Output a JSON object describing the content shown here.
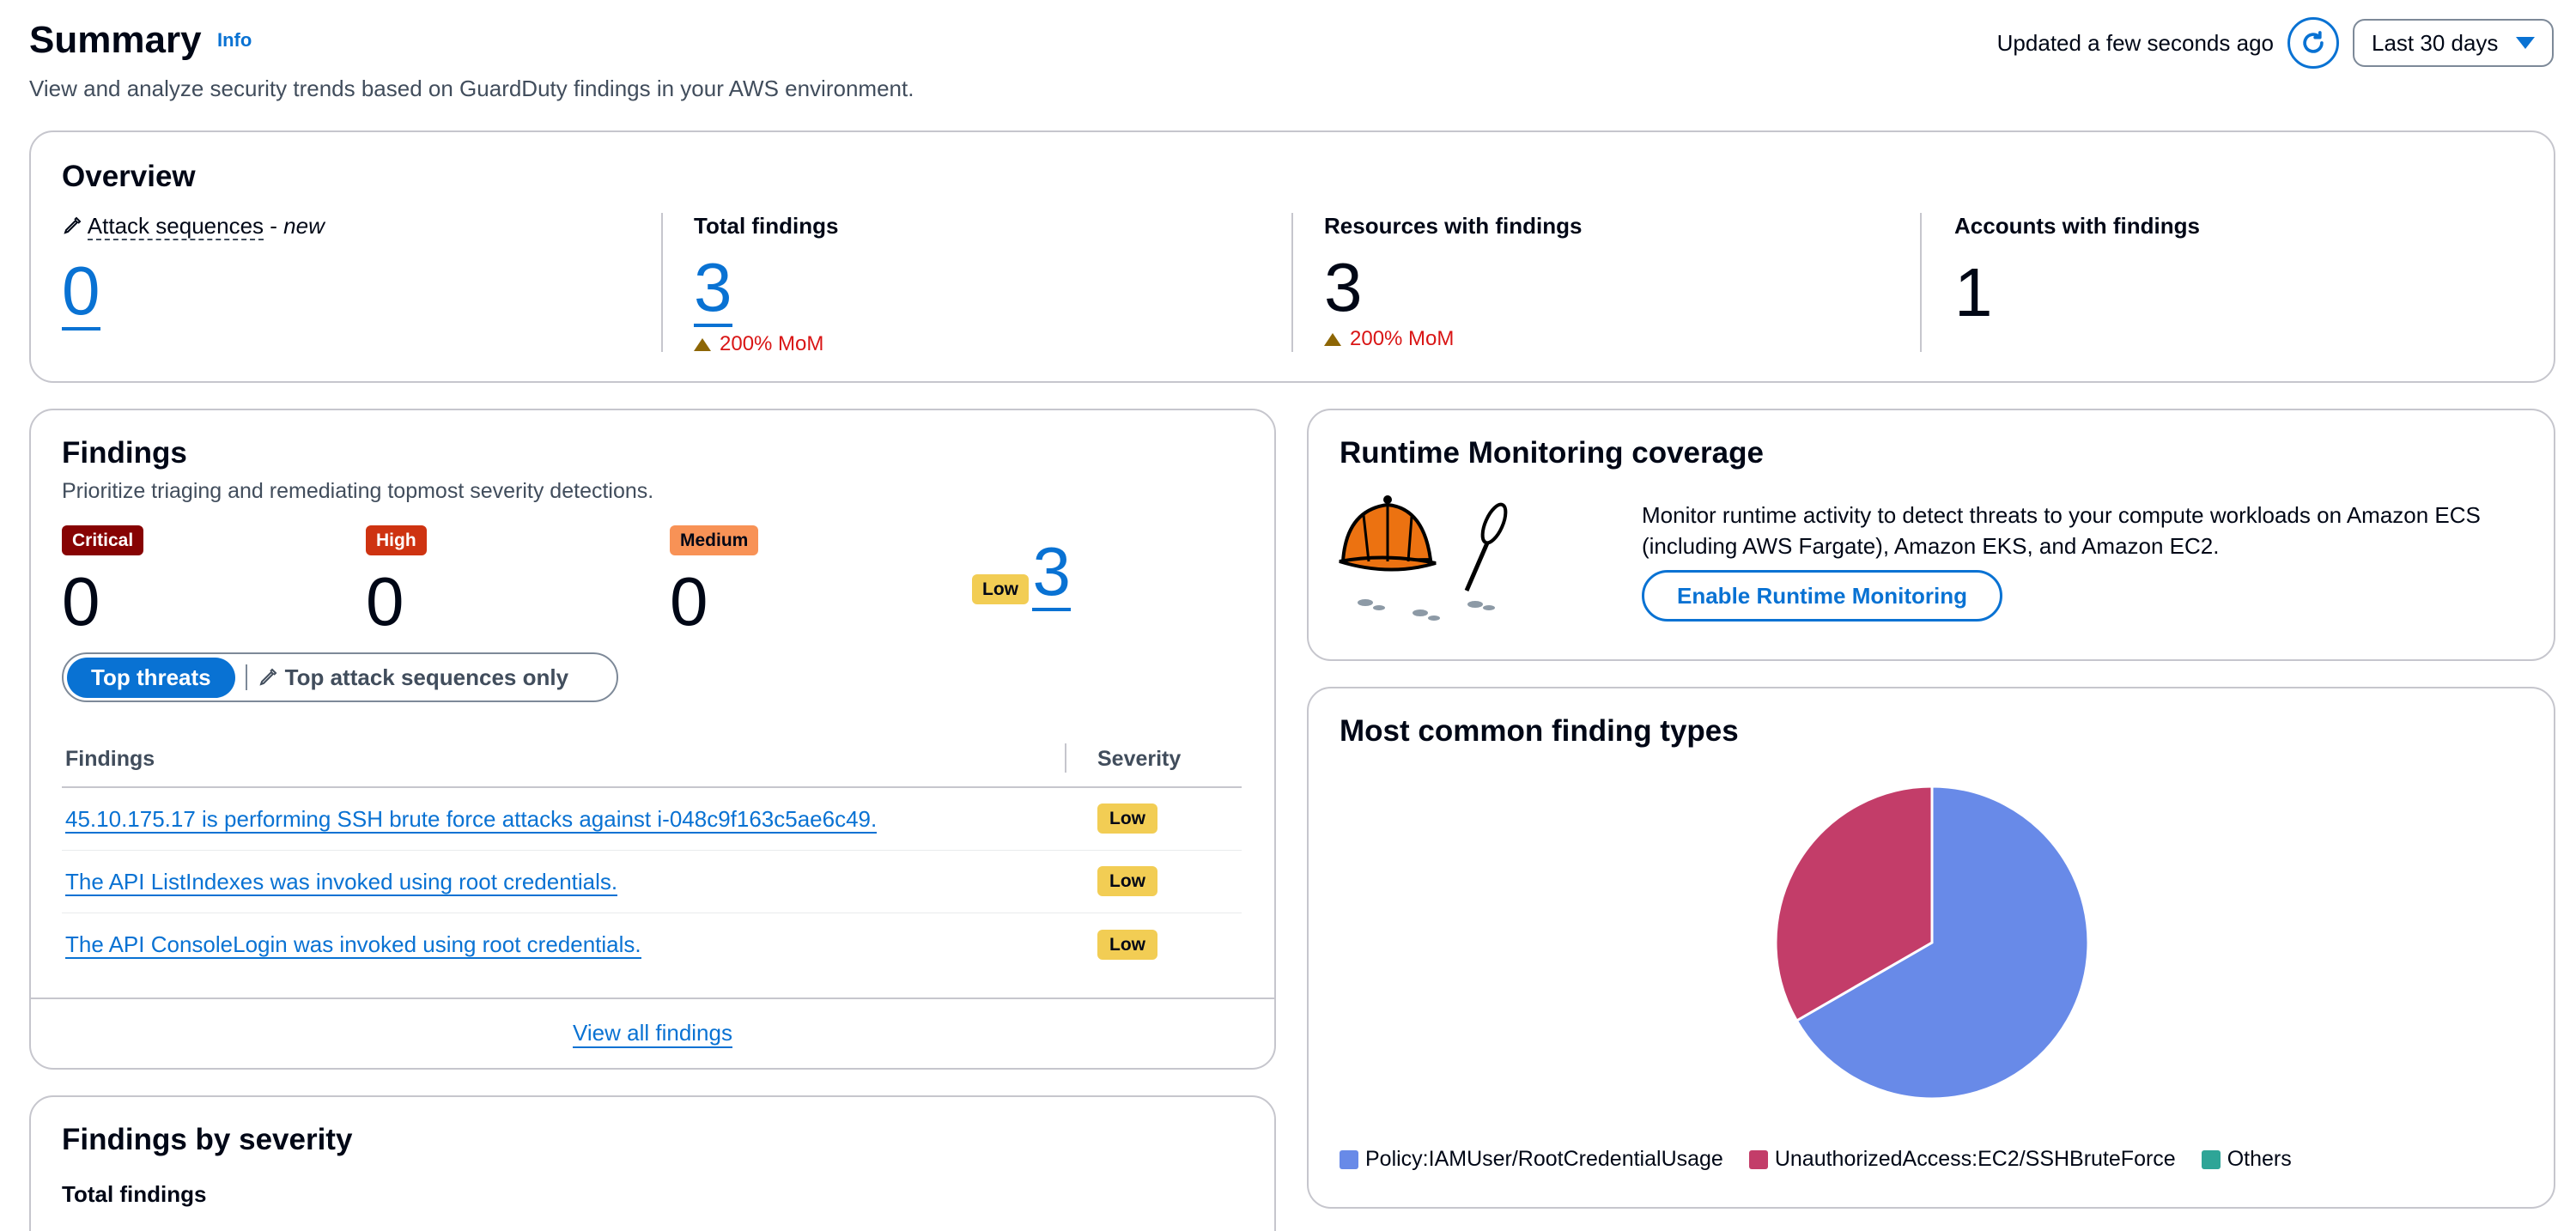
{
  "header": {
    "title": "Summary",
    "info": "Info",
    "description": "View and analyze security trends based on GuardDuty findings in your AWS environment.",
    "updated": "Updated a few seconds ago",
    "range": "Last 30 days",
    "refresh_icon": "refresh-icon"
  },
  "overview": {
    "title": "Overview",
    "attack": {
      "label": "Attack sequences",
      "dash": "-",
      "new": "new",
      "value": "0"
    },
    "total": {
      "label": "Total findings",
      "value": "3",
      "mom": "200% MoM"
    },
    "resources": {
      "label": "Resources with findings",
      "value": "3",
      "mom": "200% MoM"
    },
    "accounts": {
      "label": "Accounts with findings",
      "value": "1"
    }
  },
  "findings": {
    "title": "Findings",
    "description": "Prioritize triaging and remediating topmost severity detections.",
    "severity": [
      {
        "label": "Critical",
        "value": "0",
        "color": "#870303"
      },
      {
        "label": "High",
        "value": "0",
        "color": "#ce3311"
      },
      {
        "label": "Medium",
        "value": "0",
        "color": "#f89256"
      },
      {
        "label": "Low",
        "value": "3",
        "color": "#f2cd54"
      }
    ],
    "segments": {
      "active": "Top threats",
      "other": "Top attack sequences only"
    },
    "columns": {
      "findings": "Findings",
      "severity": "Severity"
    },
    "rows": [
      {
        "text": "45.10.175.17 is performing SSH brute force attacks against i-048c9f163c5ae6c49.",
        "severity": "Low"
      },
      {
        "text": "The API ListIndexes was invoked using root credentials.",
        "severity": "Low"
      },
      {
        "text": "The API ConsoleLogin was invoked using root credentials.",
        "severity": "Low"
      }
    ],
    "footer": "View all findings"
  },
  "runtime": {
    "title": "Runtime Monitoring coverage",
    "text": "Monitor runtime activity to detect threats to your compute workloads on Amazon ECS (including AWS Fargate), Amazon EKS, and Amazon EC2.",
    "button": "Enable Runtime Monitoring",
    "illustration_icon": "detective-hat-icon"
  },
  "common": {
    "title": "Most common finding types"
  },
  "chart_data": {
    "type": "pie",
    "title": "Most common finding types",
    "categories": [
      "Policy:IAMUser/RootCredentialUsage",
      "UnauthorizedAccess:EC2/SSHBruteForce",
      "Others"
    ],
    "values": [
      2,
      1,
      0
    ],
    "colors": [
      "#688ae8",
      "#c33d69",
      "#2ea597"
    ],
    "legend": "bottom-left"
  },
  "by_severity": {
    "title": "Findings by severity",
    "sub": "Total findings"
  }
}
